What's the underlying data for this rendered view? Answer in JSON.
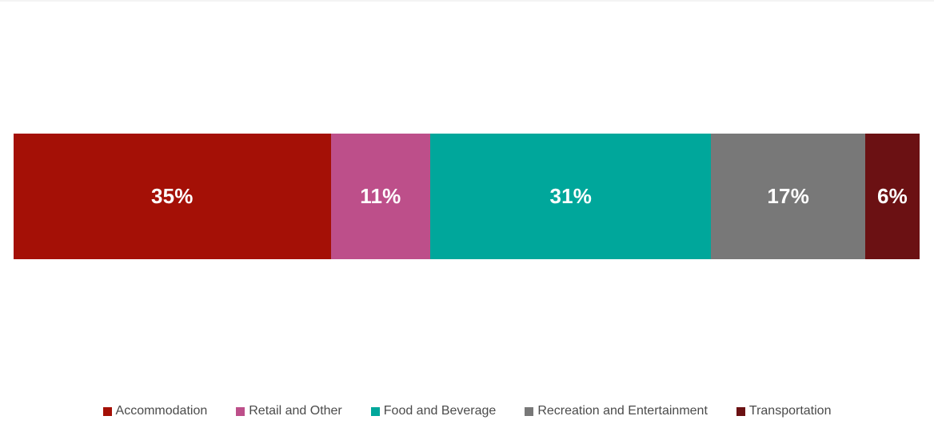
{
  "chart_data": {
    "type": "bar",
    "variant": "stacked-horizontal-100pct",
    "title": "",
    "xlabel": "",
    "ylabel": "",
    "xlim": [
      0,
      100
    ],
    "grid": false,
    "value_label_color": "#ffffff",
    "legend_position": "bottom-center",
    "legend_text_color": "#4b4b4b",
    "segments": [
      {
        "label": "Accommodation",
        "value": 35,
        "display": "35%",
        "color": "#a41006"
      },
      {
        "label": "Retail and Other",
        "value": 11,
        "display": "11%",
        "color": "#bd4f8a"
      },
      {
        "label": "Food and Beverage",
        "value": 31,
        "display": "31%",
        "color": "#00a79b"
      },
      {
        "label": "Recreation and Entertainment",
        "value": 17,
        "display": "17%",
        "color": "#787878"
      },
      {
        "label": "Transportation",
        "value": 6,
        "display": "6%",
        "color": "#6b1113"
      }
    ]
  }
}
